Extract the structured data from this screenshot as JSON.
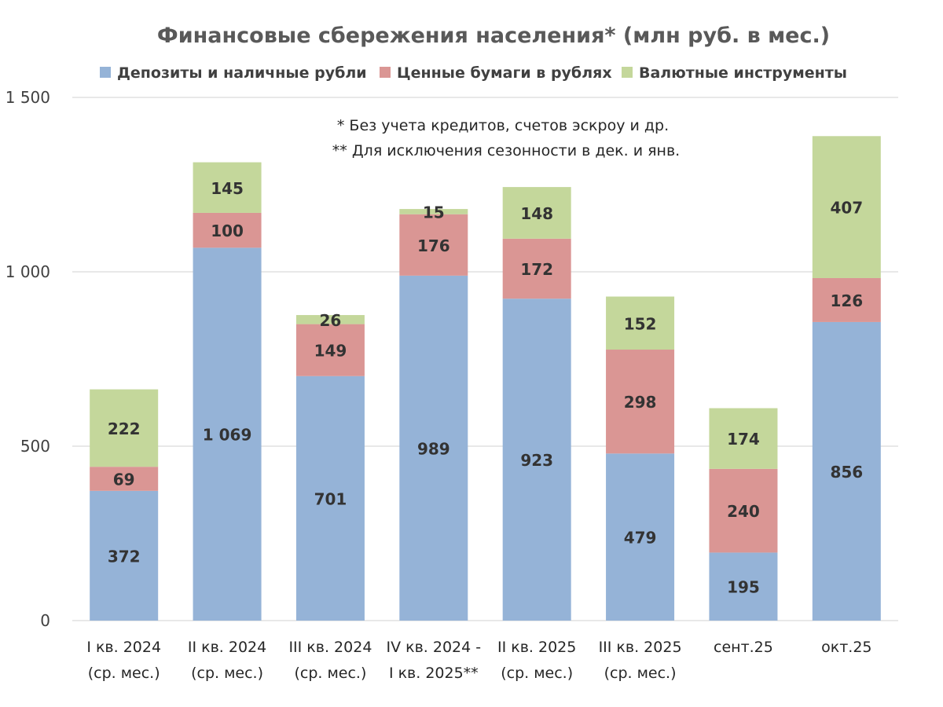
{
  "chart_data": {
    "type": "bar",
    "stacked": true,
    "title": "Финансовые сбережения населения* (млн руб. в мес.)",
    "notes": [
      "* Без учета кредитов, счетов эскроу и др.",
      "** Для исключения сезонности в дек. и янв."
    ],
    "legend_position": "top",
    "grid": true,
    "ylim": [
      0,
      1500
    ],
    "yticks": [
      {
        "value": 0,
        "label": "0"
      },
      {
        "value": 500,
        "label": "500"
      },
      {
        "value": 1000,
        "label": "1 000"
      },
      {
        "value": 1500,
        "label": "1 500"
      }
    ],
    "categories": [
      [
        "I кв. 2024",
        "(ср. мес.)"
      ],
      [
        "II кв. 2024",
        "(ср. мес.)"
      ],
      [
        "III кв. 2024",
        "(ср. мес.)"
      ],
      [
        "IV кв. 2024 -",
        "I кв. 2025**"
      ],
      [
        "II кв. 2025",
        "(ср. мес.)"
      ],
      [
        "III кв. 2025",
        "(ср. мес.)"
      ],
      [
        "сент.25"
      ],
      [
        "окт.25"
      ]
    ],
    "series": [
      {
        "name": "Депозиты и наличные рубли",
        "color": "#95b3d7",
        "values": [
          372,
          1069,
          701,
          989,
          923,
          479,
          195,
          856
        ],
        "labels": [
          "372",
          "1 069",
          "701",
          "989",
          "923",
          "479",
          "195",
          "856"
        ]
      },
      {
        "name": "Ценные бумаги в рублях",
        "color": "#da9694",
        "values": [
          69,
          100,
          149,
          176,
          172,
          298,
          240,
          126
        ],
        "labels": [
          "69",
          "100",
          "149",
          "176",
          "172",
          "298",
          "240",
          "126"
        ]
      },
      {
        "name": "Валютные инструменты",
        "color": "#c4d79b",
        "values": [
          222,
          145,
          26,
          15,
          148,
          152,
          174,
          407
        ],
        "labels": [
          "222",
          "145",
          "26",
          "15",
          "148",
          "152",
          "174",
          "407"
        ]
      }
    ]
  }
}
